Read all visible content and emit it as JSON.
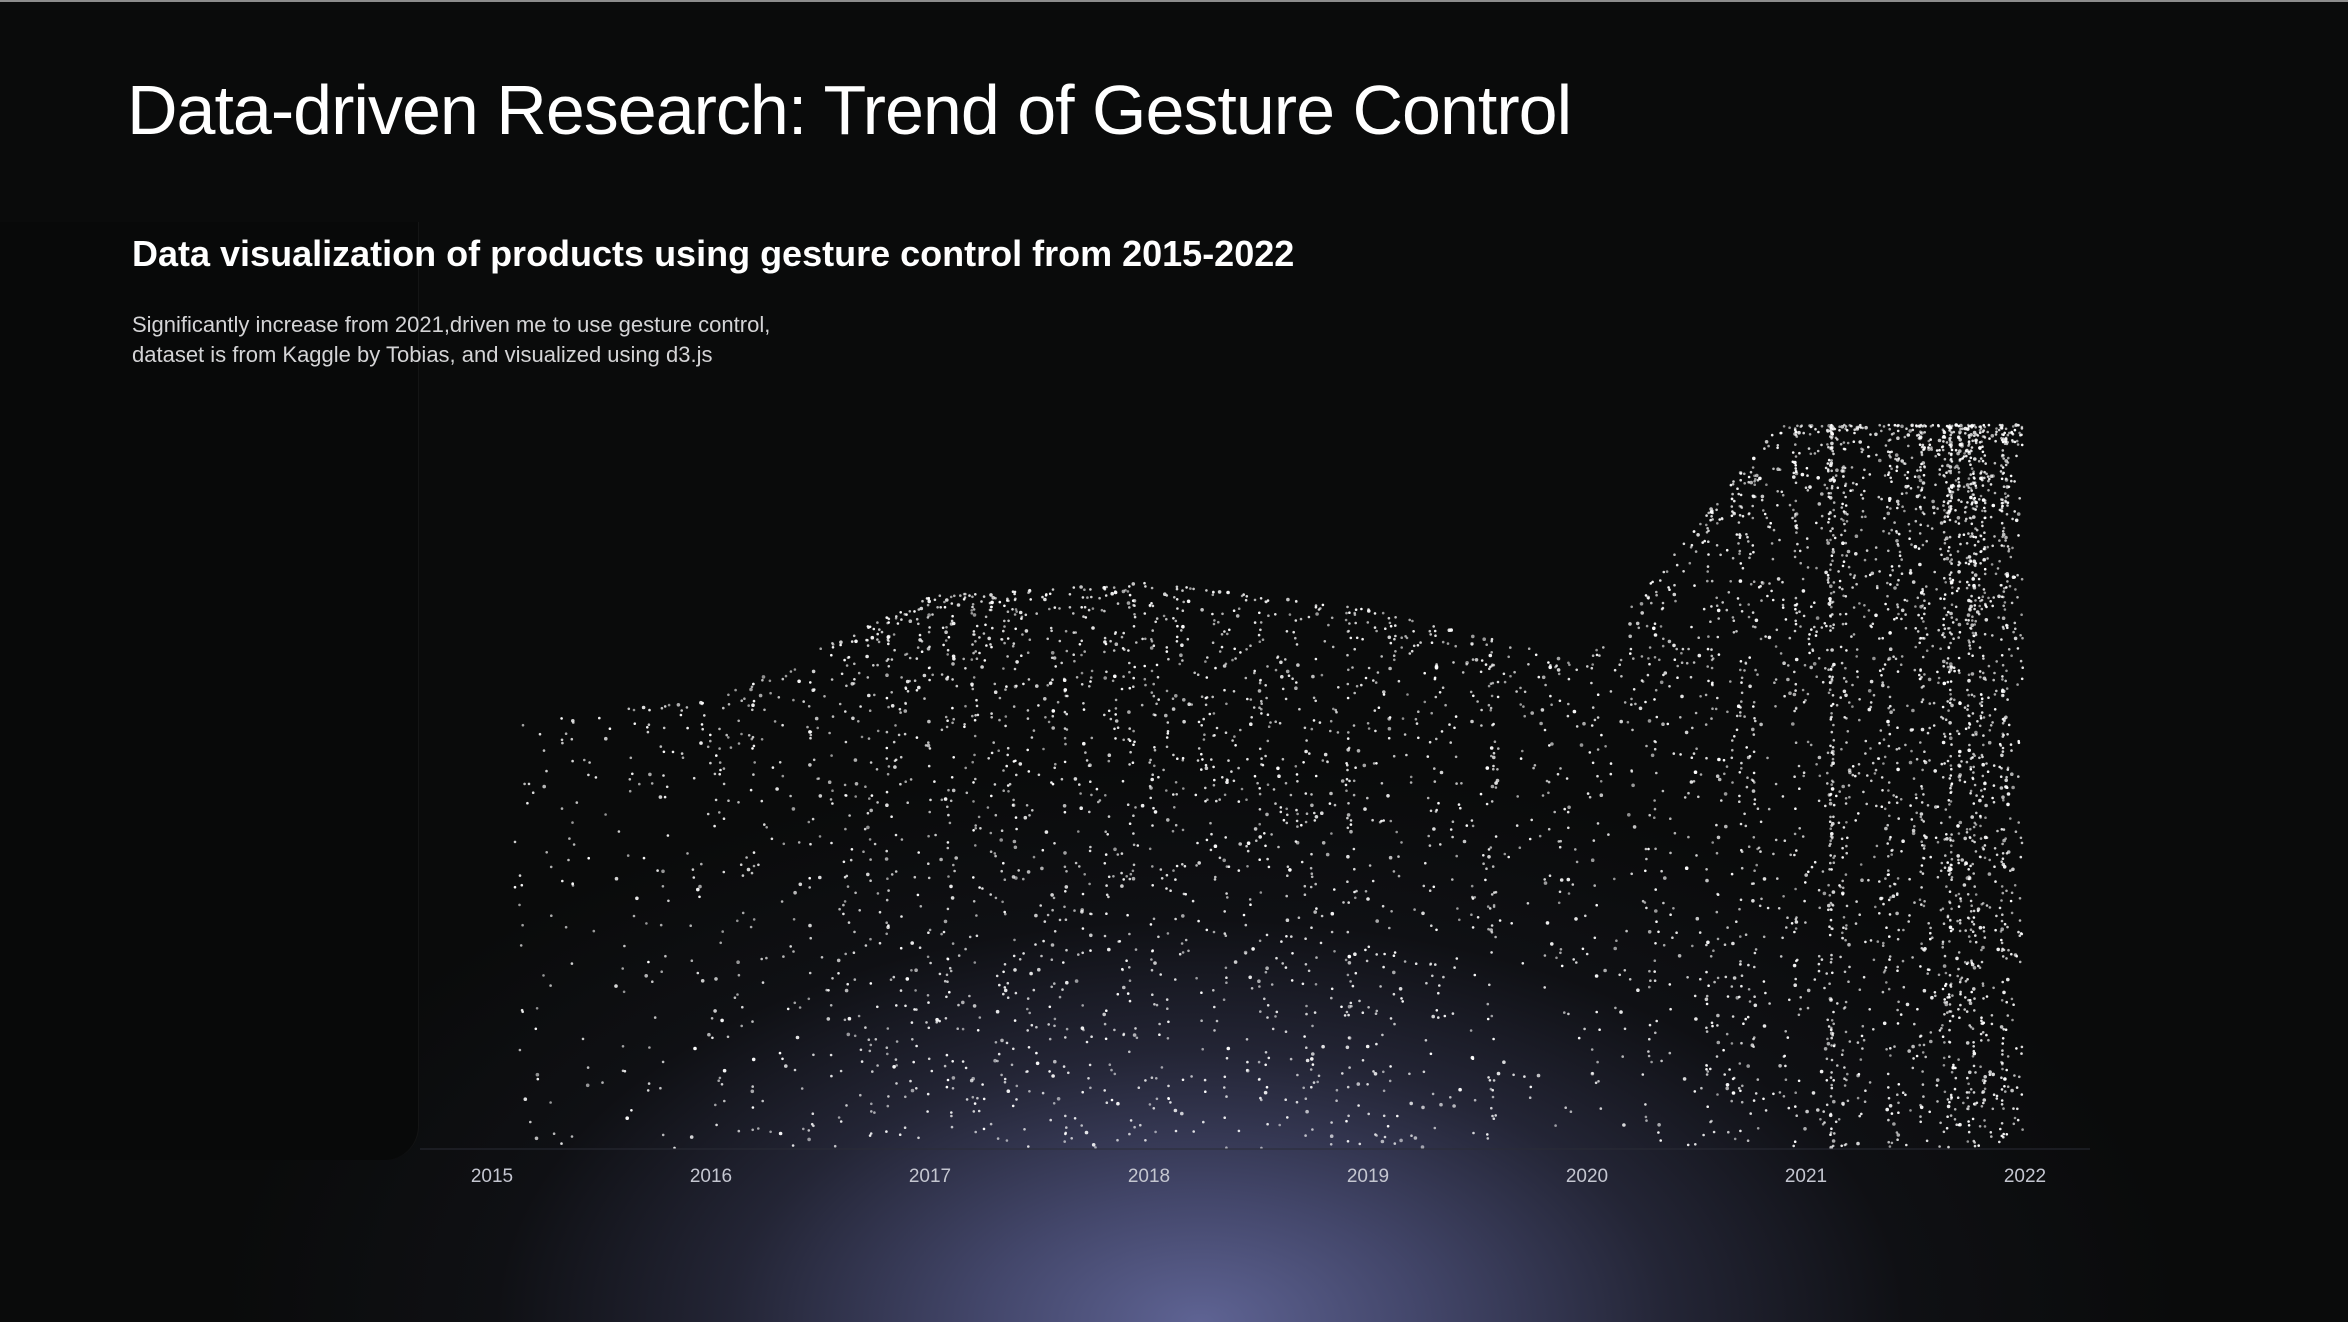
{
  "page": {
    "title": "Data-driven Research: Trend of Gesture Control",
    "subtitle": "Data visualization of products using gesture control from 2015-2022",
    "description": "Significantly increase from 2021,driven me to use gesture control, dataset is from Kaggle by Tobias, and visualized using d3.js"
  },
  "colors": {
    "background": "#0a0b0b",
    "glow": "#60659a",
    "dot": "#ffffff",
    "tick_text": "#c4c6d0"
  },
  "chart_data": {
    "type": "scatter",
    "title": "",
    "xlabel": "",
    "ylabel": "",
    "x_axis": "time",
    "x_ticks": [
      "2015",
      "2016",
      "2017",
      "2018",
      "2019",
      "2020",
      "2021",
      "2022"
    ],
    "xlim": [
      2015,
      2022
    ],
    "grid": false,
    "legend": "none",
    "series": [
      {
        "yearly_relative_density": [
          {
            "year": "2015",
            "density": 0.05
          },
          {
            "year": "2016",
            "density": 0.08
          },
          {
            "year": "2017",
            "density": 0.24
          },
          {
            "year": "2018",
            "density": 0.26
          },
          {
            "year": "2019",
            "density": 0.22
          },
          {
            "year": "2020",
            "density": 0.14
          },
          {
            "year": "2021",
            "density": 0.55
          },
          {
            "year": "2022",
            "density": 1.0
          }
        ]
      }
    ]
  }
}
